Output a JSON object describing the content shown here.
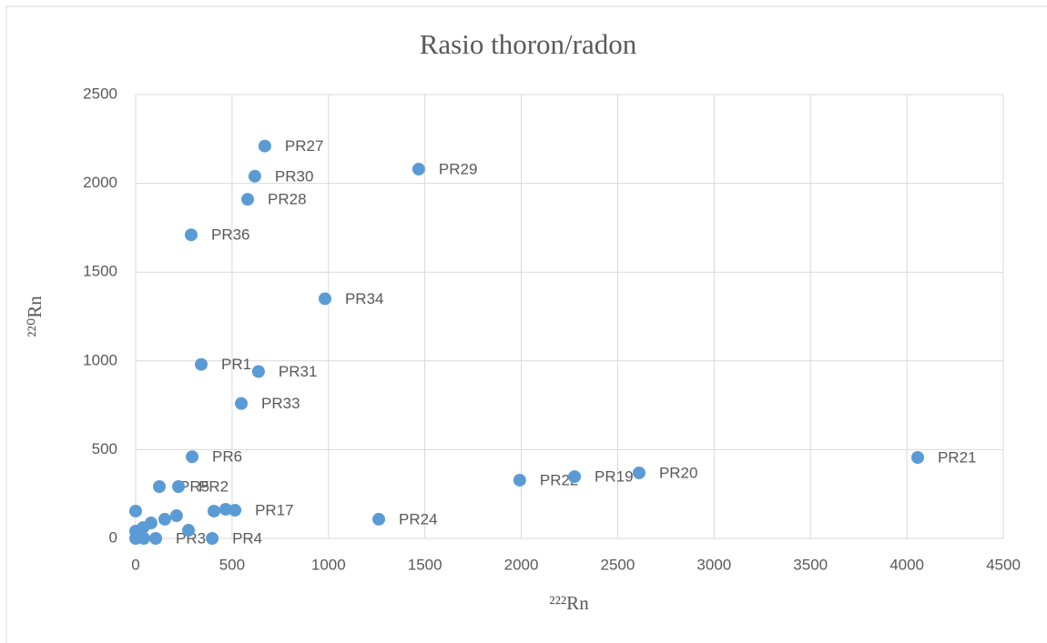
{
  "chart_data": {
    "type": "scatter",
    "title": "Rasio thoron/radon",
    "x_label": "²²²Rn",
    "y_label": "²²⁰Rn",
    "color": "#5b9bd5",
    "grid": true,
    "xlim": [
      0,
      4500
    ],
    "xticks": [
      0,
      500,
      1000,
      1500,
      2000,
      2500,
      3000,
      3500,
      4000,
      4500
    ],
    "ylim": [
      0,
      2500
    ],
    "yticks": [
      0,
      500,
      1000,
      1500,
      2000,
      2500
    ],
    "labels": [
      "PR27",
      "PR30",
      "PR28",
      "PR29",
      "PR36",
      "PR34",
      "PR1",
      "PR31",
      "PR33",
      "PR6",
      "PR5",
      "PR2",
      "PR17",
      null,
      null,
      "PR24",
      "PR22",
      "PR19",
      "PR20",
      "PR21",
      "PR3",
      "PR4",
      null,
      null,
      null,
      null,
      null,
      null,
      null,
      null,
      null,
      null
    ],
    "x": [
      670,
      618,
      581,
      1468,
      288,
      982,
      340,
      637,
      548,
      293,
      123,
      222,
      515,
      406,
      467,
      1261,
      1992,
      2276,
      2611,
      4056,
      104,
      397,
      274,
      0,
      80,
      151,
      212,
      0,
      38,
      0,
      42,
      14
    ],
    "y": [
      2210,
      2040,
      1910,
      2080,
      1710,
      1350,
      980,
      940,
      760,
      460,
      292,
      292,
      159,
      154,
      164,
      108,
      328,
      348,
      369,
      456,
      0,
      0,
      46,
      154,
      87,
      108,
      128,
      41,
      61,
      0,
      0,
      20
    ]
  }
}
